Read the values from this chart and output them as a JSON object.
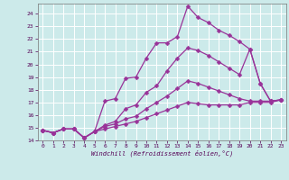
{
  "xlabel": "Windchill (Refroidissement éolien,°C)",
  "bg_color": "#cceaea",
  "grid_color": "#ffffff",
  "line_color": "#993399",
  "markersize": 2.5,
  "linewidth": 0.9,
  "xlim": [
    -0.5,
    23.5
  ],
  "ylim": [
    14.0,
    24.8
  ],
  "yticks": [
    14,
    15,
    16,
    17,
    18,
    19,
    20,
    21,
    22,
    23,
    24
  ],
  "xticks": [
    0,
    1,
    2,
    3,
    4,
    5,
    6,
    7,
    8,
    9,
    10,
    11,
    12,
    13,
    14,
    15,
    16,
    17,
    18,
    19,
    20,
    21,
    22,
    23
  ],
  "lines": [
    [
      14.8,
      14.6,
      14.9,
      14.9,
      14.2,
      14.7,
      17.1,
      17.3,
      18.9,
      19.0,
      20.5,
      21.7,
      21.7,
      22.2,
      24.6,
      23.7,
      23.3,
      22.7,
      22.3,
      21.8,
      21.2,
      18.5,
      17.1,
      17.2
    ],
    [
      14.8,
      14.6,
      14.9,
      14.9,
      14.2,
      14.7,
      15.2,
      15.5,
      16.5,
      16.8,
      17.8,
      18.3,
      19.5,
      20.5,
      21.3,
      21.1,
      20.7,
      20.2,
      19.7,
      19.2,
      21.2,
      18.5,
      17.1,
      17.2
    ],
    [
      14.8,
      14.6,
      14.9,
      14.9,
      14.2,
      14.7,
      15.1,
      15.3,
      15.7,
      15.9,
      16.5,
      17.0,
      17.5,
      18.1,
      18.7,
      18.5,
      18.2,
      17.9,
      17.6,
      17.3,
      17.1,
      17.1,
      17.1,
      17.2
    ],
    [
      14.8,
      14.6,
      14.9,
      14.9,
      14.2,
      14.7,
      14.9,
      15.1,
      15.3,
      15.5,
      15.8,
      16.1,
      16.4,
      16.7,
      17.0,
      16.9,
      16.8,
      16.8,
      16.8,
      16.8,
      17.0,
      17.0,
      17.0,
      17.2
    ]
  ]
}
